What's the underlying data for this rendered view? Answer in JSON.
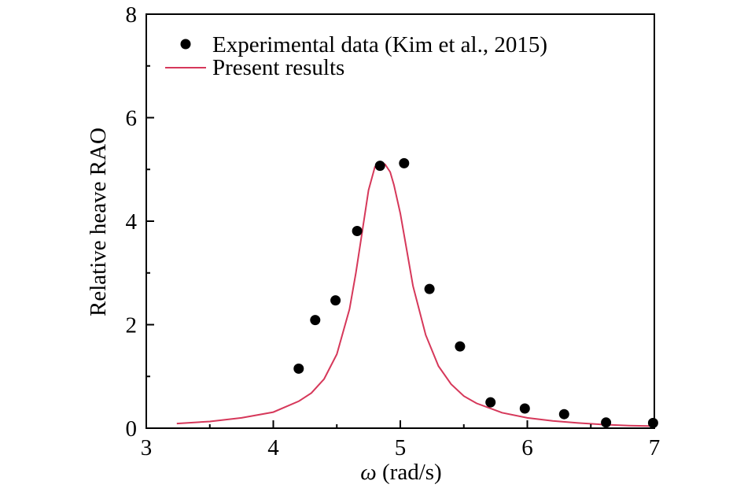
{
  "chart_data": {
    "type": "scatter",
    "xlabel_symbol": "ω",
    "xlabel_unit": " (rad/s)",
    "ylabel": "Relative heave RAO",
    "xlim": [
      3,
      7
    ],
    "ylim": [
      0,
      8
    ],
    "x_ticks": [
      3,
      4,
      5,
      6,
      7
    ],
    "y_ticks": [
      0,
      2,
      4,
      6,
      8
    ],
    "grid": false,
    "legend_position": "top-left",
    "series": [
      {
        "name": "Experimental data (Kim et al., 2015)",
        "kind": "scatter",
        "color": "#000000",
        "x": [
          4.2,
          4.33,
          4.49,
          4.66,
          4.84,
          5.03,
          5.23,
          5.47,
          5.71,
          5.98,
          6.29,
          6.62,
          6.99
        ],
        "y": [
          1.15,
          2.09,
          2.47,
          3.81,
          5.07,
          5.12,
          2.69,
          1.58,
          0.5,
          0.38,
          0.27,
          0.11,
          0.1
        ]
      },
      {
        "name": "Present results",
        "kind": "line",
        "color": "#d6385a",
        "x": [
          3.24,
          3.5,
          3.75,
          4.0,
          4.2,
          4.3,
          4.4,
          4.5,
          4.6,
          4.65,
          4.7,
          4.75,
          4.8,
          4.85,
          4.88,
          4.92,
          4.95,
          5.0,
          5.05,
          5.1,
          5.2,
          5.3,
          5.4,
          5.5,
          5.6,
          5.8,
          6.0,
          6.2,
          6.4,
          6.6,
          6.8,
          7.0
        ],
        "y": [
          0.09,
          0.13,
          0.2,
          0.31,
          0.52,
          0.68,
          0.95,
          1.43,
          2.3,
          3.0,
          3.8,
          4.6,
          5.05,
          5.12,
          5.1,
          4.95,
          4.7,
          4.15,
          3.45,
          2.75,
          1.8,
          1.2,
          0.85,
          0.62,
          0.48,
          0.3,
          0.2,
          0.14,
          0.1,
          0.07,
          0.05,
          0.04
        ]
      }
    ]
  }
}
